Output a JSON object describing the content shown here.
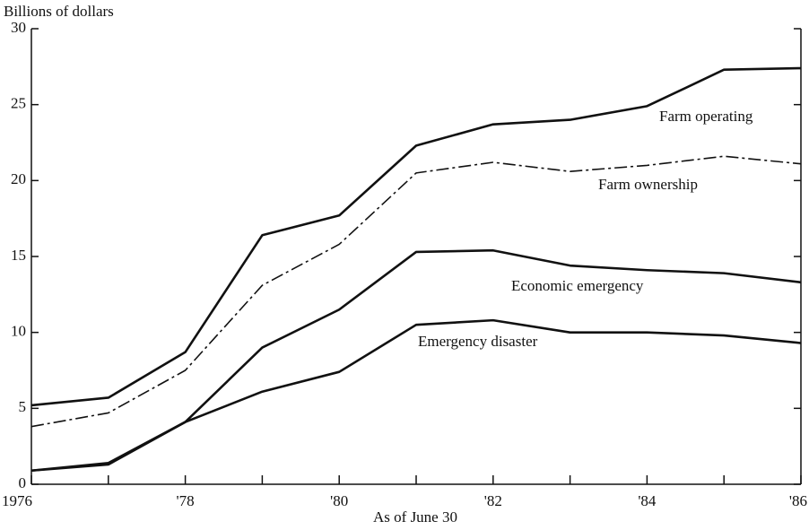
{
  "chart_data": {
    "type": "line",
    "y_axis_label": "Billions of dollars",
    "x_axis_label": "As of June 30",
    "x": [
      1976,
      1977,
      1978,
      1979,
      1980,
      1981,
      1982,
      1983,
      1984,
      1985,
      1986
    ],
    "series": [
      {
        "name": "Farm operating",
        "color": "#111111",
        "style": "solid",
        "values": [
          5.2,
          5.7,
          8.7,
          16.4,
          17.7,
          22.3,
          23.7,
          24.0,
          24.9,
          27.3,
          27.4
        ]
      },
      {
        "name": "Farm ownership",
        "color": "#111111",
        "style": "dash-dot",
        "values": [
          3.8,
          4.7,
          7.5,
          13.1,
          15.8,
          20.5,
          21.2,
          20.6,
          21.0,
          21.6,
          21.1
        ]
      },
      {
        "name": "Economic emergency",
        "color": "#111111",
        "style": "solid",
        "values": [
          0.9,
          1.3,
          4.1,
          9.0,
          11.5,
          15.3,
          15.4,
          14.4,
          14.1,
          13.9,
          13.3
        ]
      },
      {
        "name": "Emergency disaster",
        "color": "#111111",
        "style": "solid",
        "values": [
          0.9,
          1.4,
          4.1,
          6.1,
          7.4,
          10.5,
          10.8,
          10.0,
          10.0,
          9.8,
          9.3
        ]
      }
    ],
    "xlim": [
      1976,
      1986
    ],
    "xticks": [
      {
        "value": 1976,
        "label": "1976"
      },
      {
        "value": 1978,
        "label": "'78"
      },
      {
        "value": 1980,
        "label": "'80"
      },
      {
        "value": 1982,
        "label": "'82"
      },
      {
        "value": 1984,
        "label": "'84"
      },
      {
        "value": 1986,
        "label": "'86"
      }
    ],
    "minor_xticks": [
      1977,
      1979,
      1981,
      1983,
      1985
    ],
    "ylim": [
      0,
      30
    ],
    "yticks": [
      0,
      5,
      10,
      15,
      20,
      25,
      30
    ],
    "grid": false
  }
}
